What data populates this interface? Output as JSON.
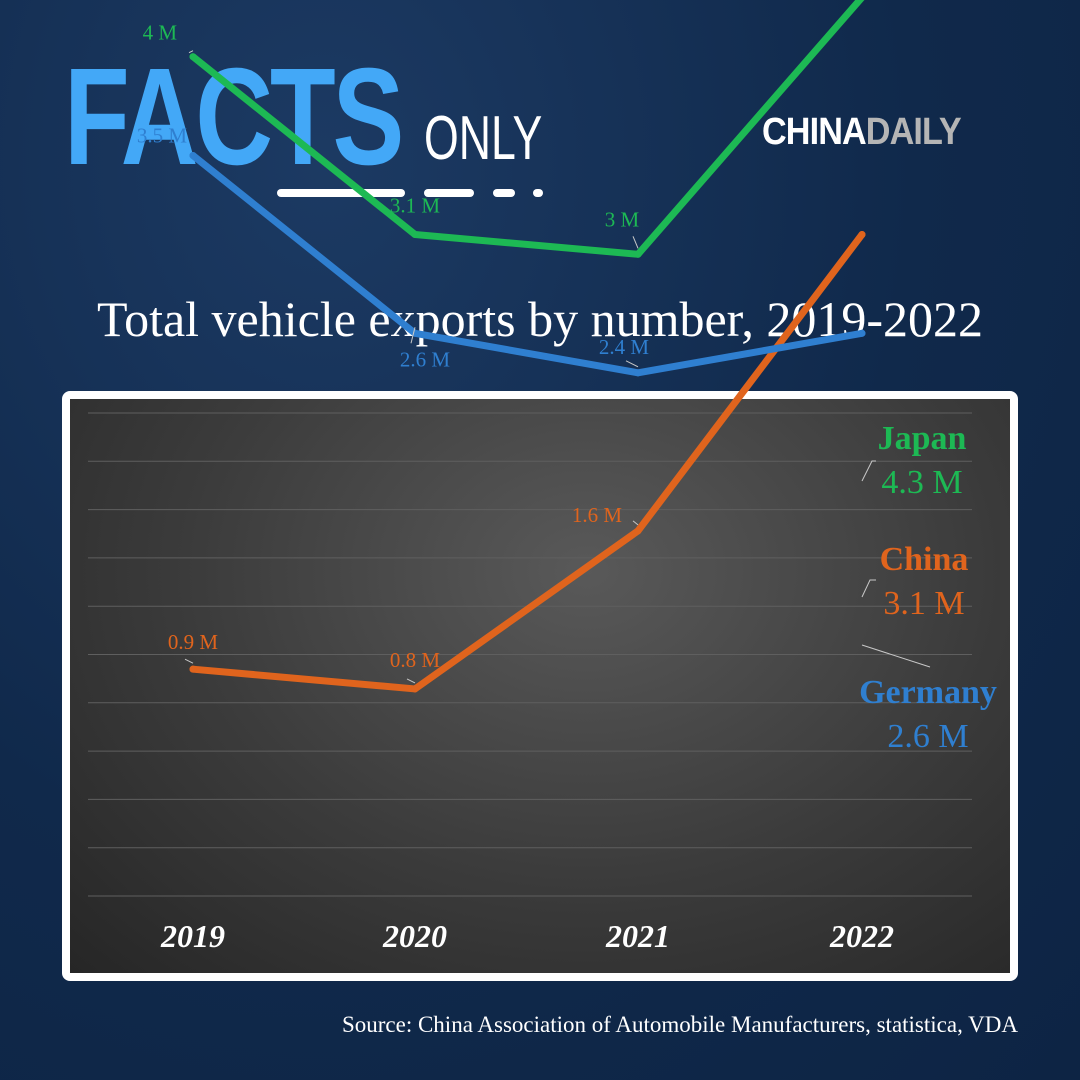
{
  "brand": {
    "facts": "FACTS",
    "only": "ONLY",
    "logo_part1": "CHINA",
    "logo_part2": "DAILY"
  },
  "source": "Source: China Association of Automobile Manufacturers, statistica, VDA",
  "chart_data": {
    "type": "line",
    "title": "Total vehicle exports by number, 2019-2022",
    "xlabel": "",
    "ylabel": "",
    "categories": [
      "2019",
      "2020",
      "2021",
      "2022"
    ],
    "unit": "M",
    "grid": true,
    "legend": "inline labels at end of each line (right)",
    "series": [
      {
        "name": "Japan",
        "color": "#1db954",
        "values": [
          4,
          3.1,
          3,
          4.3
        ],
        "labels": [
          "4 M",
          "3.1 M",
          "3 M",
          "4.3 M"
        ]
      },
      {
        "name": "China",
        "color": "#e0641d",
        "values": [
          0.9,
          0.8,
          1.6,
          3.1
        ],
        "labels": [
          "0.9 M",
          "0.8 M",
          "1.6 M",
          "3.1 M"
        ]
      },
      {
        "name": "Germany",
        "color": "#2f7fd0",
        "values": [
          3.5,
          2.6,
          2.4,
          2.6
        ],
        "labels": [
          "3.5 M",
          "2.6 M",
          "2.4 M",
          "2.6 M"
        ]
      }
    ]
  }
}
